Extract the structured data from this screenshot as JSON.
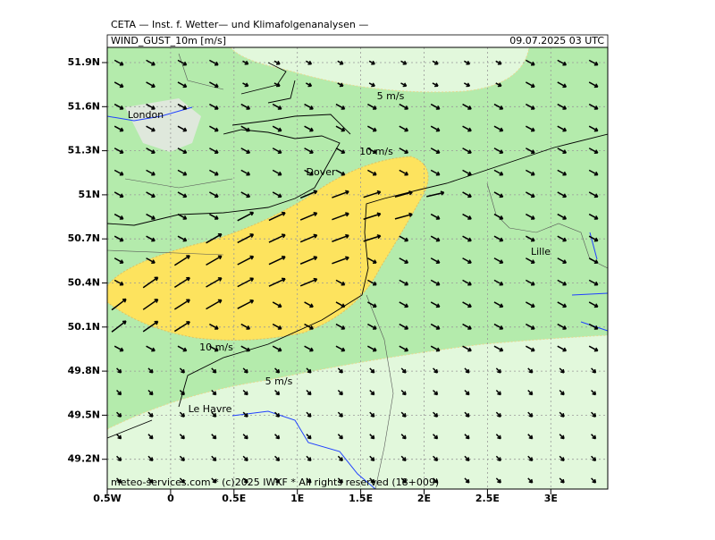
{
  "header": {
    "institute": "CETA — Inst. f. Wetter— und Klimafolgenanalysen —",
    "parameter": "WIND_GUST_10m [m/s]",
    "valid_time": "09.07.2025 03 UTC"
  },
  "axes": {
    "lat_labels": [
      "51.9N",
      "51.6N",
      "51.3N",
      "51N",
      "50.7N",
      "50.4N",
      "50.1N",
      "49.8N",
      "49.5N",
      "49.2N"
    ],
    "lon_labels": [
      "0.5W",
      "0",
      "0.5E",
      "1E",
      "1.5E",
      "2E",
      "2.5E",
      "3E"
    ]
  },
  "contour_labels": [
    "5 m/s",
    "10 m/s",
    "10 m/s",
    "5 m/s"
  ],
  "places": [
    "London",
    "Dover",
    "Lille",
    "Le Havre"
  ],
  "footer": "meteo-services.com * (c)2025 IWKF * All rights reserved (18+009)"
}
